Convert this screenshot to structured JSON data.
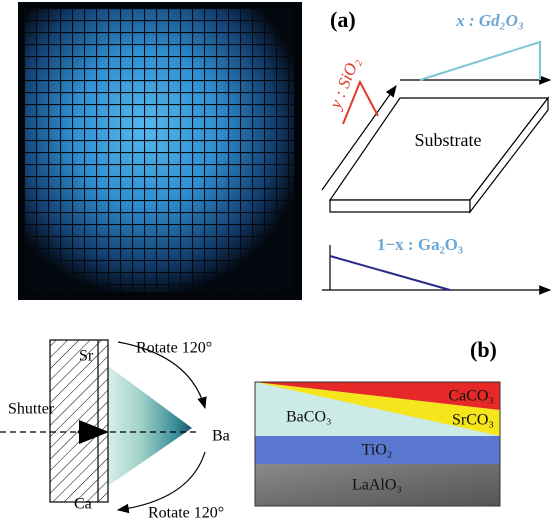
{
  "panel_a": {
    "label": "(a)",
    "gd_label": "x : Gd₂O₃",
    "si_label": "y : SiO₂",
    "substrate": "Substrate",
    "ga_label": "1−x : Ga₂O₃"
  },
  "panel_b": {
    "label": "(b)",
    "rotate_top": "Rotate 120°",
    "rotate_bottom": "Rotate 120°",
    "sr": "Sr",
    "shutter": "Shutter",
    "ba": "Ba",
    "ca": "Ca",
    "layers": {
      "caco3": "CaCO₃",
      "srco3": "SrCO₃",
      "baco3": "BaCO₃",
      "tio2": "TiO₂",
      "laalo3": "LaAlO₃"
    }
  }
}
